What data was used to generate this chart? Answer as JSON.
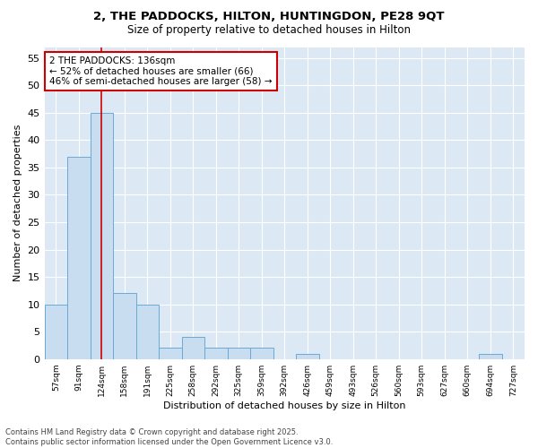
{
  "title_line1": "2, THE PADDOCKS, HILTON, HUNTINGDON, PE28 9QT",
  "title_line2": "Size of property relative to detached houses in Hilton",
  "xlabel": "Distribution of detached houses by size in Hilton",
  "ylabel": "Number of detached properties",
  "bar_values": [
    10,
    37,
    45,
    12,
    10,
    2,
    4,
    2,
    2,
    2,
    0,
    1,
    0,
    0,
    0,
    0,
    0,
    0,
    0,
    1,
    0
  ],
  "categories": [
    "57sqm",
    "91sqm",
    "124sqm",
    "158sqm",
    "191sqm",
    "225sqm",
    "258sqm",
    "292sqm",
    "325sqm",
    "359sqm",
    "392sqm",
    "426sqm",
    "459sqm",
    "493sqm",
    "526sqm",
    "560sqm",
    "593sqm",
    "627sqm",
    "660sqm",
    "694sqm",
    "727sqm"
  ],
  "bar_color": "#c9ddf0",
  "bar_edge_color": "#6aaad4",
  "background_color": "#dce9f5",
  "fig_background_color": "#ffffff",
  "grid_color": "#ffffff",
  "vline_x": 2,
  "vline_color": "#cc0000",
  "annotation_text": "2 THE PADDOCKS: 136sqm\n← 52% of detached houses are smaller (66)\n46% of semi-detached houses are larger (58) →",
  "annotation_box_color": "#ffffff",
  "annotation_box_edge_color": "#cc0000",
  "ylim": [
    0,
    57
  ],
  "yticks": [
    0,
    5,
    10,
    15,
    20,
    25,
    30,
    35,
    40,
    45,
    50,
    55
  ],
  "footnote_line1": "Contains HM Land Registry data © Crown copyright and database right 2025.",
  "footnote_line2": "Contains public sector information licensed under the Open Government Licence v3.0."
}
